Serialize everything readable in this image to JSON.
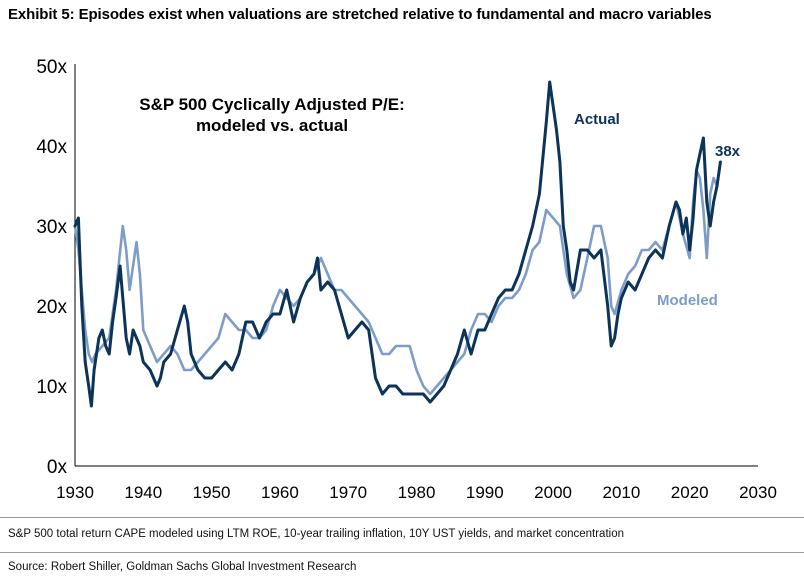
{
  "exhibit_title": "Exhibit 5: Episodes exist when valuations are stretched relative to fundamental and macro variables",
  "footnote": "S&P 500 total return CAPE modeled using LTM ROE, 10-year trailing inflation, 10Y UST yields, and market concentration",
  "source": "Source: Robert Shiller, Goldman Sachs Global Investment Research",
  "colors": {
    "actual": "#0c3358",
    "modeled": "#7d9dc8",
    "axis": "#000000"
  },
  "chart_data": {
    "type": "line",
    "title_lines": [
      "S&P 500 Cyclically Adjusted P/E:",
      "modeled vs. actual"
    ],
    "xlim": [
      1930,
      2030
    ],
    "ylim": [
      0,
      50
    ],
    "x_ticks": [
      1930,
      1940,
      1950,
      1960,
      1970,
      1980,
      1990,
      2000,
      2010,
      2020,
      2030
    ],
    "x_tick_labels": [
      "1930",
      "1940",
      "1950",
      "1960",
      "1970",
      "1980",
      "1990",
      "2000",
      "2010",
      "2020",
      "2030"
    ],
    "y_ticks": [
      0,
      10,
      20,
      30,
      40,
      50
    ],
    "y_tick_labels": [
      "0x",
      "10x",
      "20x",
      "30x",
      "40x",
      "50x"
    ],
    "grid": false,
    "annotations": [
      {
        "text": "Actual",
        "series": "Actual"
      },
      {
        "text": "Modeled",
        "series": "Modeled"
      },
      {
        "text": "38x",
        "series": "Actual"
      }
    ],
    "series": [
      {
        "name": "Actual",
        "color": "#0c3358",
        "points": [
          [
            1930,
            30
          ],
          [
            1930.5,
            31
          ],
          [
            1931,
            20
          ],
          [
            1931.5,
            13
          ],
          [
            1932,
            10
          ],
          [
            1932.4,
            7.5
          ],
          [
            1932.8,
            12
          ],
          [
            1933.5,
            16
          ],
          [
            1934,
            17
          ],
          [
            1934.5,
            15
          ],
          [
            1935,
            14
          ],
          [
            1935.5,
            18
          ],
          [
            1936,
            21
          ],
          [
            1936.6,
            25
          ],
          [
            1937,
            21
          ],
          [
            1937.5,
            16
          ],
          [
            1938,
            14
          ],
          [
            1938.5,
            17
          ],
          [
            1939,
            16
          ],
          [
            1939.5,
            15
          ],
          [
            1940,
            13
          ],
          [
            1941,
            12
          ],
          [
            1942,
            10
          ],
          [
            1942.5,
            11
          ],
          [
            1943,
            13
          ],
          [
            1944,
            14
          ],
          [
            1945,
            17
          ],
          [
            1946,
            20
          ],
          [
            1946.5,
            18
          ],
          [
            1947,
            14
          ],
          [
            1948,
            12
          ],
          [
            1949,
            11
          ],
          [
            1950,
            11
          ],
          [
            1951,
            12
          ],
          [
            1952,
            13
          ],
          [
            1953,
            12
          ],
          [
            1954,
            14
          ],
          [
            1955,
            18
          ],
          [
            1956,
            18
          ],
          [
            1957,
            16
          ],
          [
            1958,
            18
          ],
          [
            1959,
            19
          ],
          [
            1960,
            19
          ],
          [
            1961,
            22
          ],
          [
            1962,
            18
          ],
          [
            1963,
            21
          ],
          [
            1964,
            23
          ],
          [
            1965,
            24
          ],
          [
            1965.5,
            26
          ],
          [
            1966,
            22
          ],
          [
            1967,
            23
          ],
          [
            1968,
            22
          ],
          [
            1969,
            19
          ],
          [
            1970,
            16
          ],
          [
            1971,
            17
          ],
          [
            1972,
            18
          ],
          [
            1973,
            17
          ],
          [
            1974,
            11
          ],
          [
            1975,
            9
          ],
          [
            1976,
            10
          ],
          [
            1977,
            10
          ],
          [
            1978,
            9
          ],
          [
            1979,
            9
          ],
          [
            1980,
            9
          ],
          [
            1981,
            9
          ],
          [
            1982,
            8
          ],
          [
            1983,
            9
          ],
          [
            1984,
            10
          ],
          [
            1985,
            12
          ],
          [
            1986,
            14
          ],
          [
            1987,
            17
          ],
          [
            1988,
            14
          ],
          [
            1989,
            17
          ],
          [
            1990,
            17
          ],
          [
            1991,
            19
          ],
          [
            1992,
            21
          ],
          [
            1993,
            22
          ],
          [
            1994,
            22
          ],
          [
            1995,
            24
          ],
          [
            1996,
            27
          ],
          [
            1997,
            30
          ],
          [
            1998,
            34
          ],
          [
            1999,
            43
          ],
          [
            1999.5,
            48
          ],
          [
            2000,
            45
          ],
          [
            2000.5,
            42
          ],
          [
            2001,
            38
          ],
          [
            2001.5,
            30
          ],
          [
            2002,
            27
          ],
          [
            2002.5,
            23
          ],
          [
            2003,
            22
          ],
          [
            2004,
            27
          ],
          [
            2005,
            27
          ],
          [
            2006,
            26
          ],
          [
            2007,
            27
          ],
          [
            2008,
            20
          ],
          [
            2008.5,
            15
          ],
          [
            2009,
            16
          ],
          [
            2009.5,
            19
          ],
          [
            2010,
            21
          ],
          [
            2011,
            23
          ],
          [
            2012,
            22
          ],
          [
            2013,
            24
          ],
          [
            2014,
            26
          ],
          [
            2015,
            27
          ],
          [
            2016,
            26
          ],
          [
            2017,
            30
          ],
          [
            2018,
            33
          ],
          [
            2018.5,
            32
          ],
          [
            2019,
            29
          ],
          [
            2019.5,
            31
          ],
          [
            2020,
            27
          ],
          [
            2020.5,
            31
          ],
          [
            2021,
            37
          ],
          [
            2021.5,
            39
          ],
          [
            2022,
            41
          ],
          [
            2022.5,
            33
          ],
          [
            2023,
            30
          ],
          [
            2023.5,
            33
          ],
          [
            2024,
            35
          ],
          [
            2024.5,
            38
          ]
        ]
      },
      {
        "name": "Modeled",
        "color": "#7d9dc8",
        "points": [
          [
            1930,
            30
          ],
          [
            1930.5,
            27
          ],
          [
            1931,
            22
          ],
          [
            1931.5,
            17
          ],
          [
            1932,
            14
          ],
          [
            1932.5,
            13
          ],
          [
            1933,
            14
          ],
          [
            1934,
            15
          ],
          [
            1935,
            16
          ],
          [
            1936,
            22
          ],
          [
            1937,
            30
          ],
          [
            1937.5,
            27
          ],
          [
            1938,
            22
          ],
          [
            1939,
            28
          ],
          [
            1939.5,
            24
          ],
          [
            1940,
            17
          ],
          [
            1941,
            15
          ],
          [
            1942,
            13
          ],
          [
            1943,
            14
          ],
          [
            1944,
            15
          ],
          [
            1945,
            14
          ],
          [
            1946,
            12
          ],
          [
            1947,
            12
          ],
          [
            1948,
            13
          ],
          [
            1949,
            14
          ],
          [
            1950,
            15
          ],
          [
            1951,
            16
          ],
          [
            1952,
            19
          ],
          [
            1953,
            18
          ],
          [
            1954,
            17
          ],
          [
            1955,
            17
          ],
          [
            1956,
            16
          ],
          [
            1957,
            16
          ],
          [
            1958,
            17
          ],
          [
            1959,
            20
          ],
          [
            1960,
            22
          ],
          [
            1961,
            21
          ],
          [
            1962,
            20
          ],
          [
            1963,
            21
          ],
          [
            1964,
            23
          ],
          [
            1965,
            24
          ],
          [
            1966,
            26
          ],
          [
            1967,
            24
          ],
          [
            1968,
            22
          ],
          [
            1969,
            22
          ],
          [
            1970,
            21
          ],
          [
            1971,
            20
          ],
          [
            1972,
            19
          ],
          [
            1973,
            18
          ],
          [
            1974,
            16
          ],
          [
            1975,
            14
          ],
          [
            1976,
            14
          ],
          [
            1977,
            15
          ],
          [
            1978,
            15
          ],
          [
            1979,
            15
          ],
          [
            1980,
            12
          ],
          [
            1981,
            10
          ],
          [
            1982,
            9
          ],
          [
            1983,
            10
          ],
          [
            1984,
            11
          ],
          [
            1985,
            12
          ],
          [
            1986,
            13
          ],
          [
            1987,
            14
          ],
          [
            1988,
            17
          ],
          [
            1989,
            19
          ],
          [
            1990,
            19
          ],
          [
            1991,
            18
          ],
          [
            1992,
            20
          ],
          [
            1993,
            21
          ],
          [
            1994,
            21
          ],
          [
            1995,
            22
          ],
          [
            1996,
            24
          ],
          [
            1997,
            27
          ],
          [
            1998,
            28
          ],
          [
            1999,
            32
          ],
          [
            2000,
            31
          ],
          [
            2001,
            30
          ],
          [
            2002,
            24
          ],
          [
            2003,
            21
          ],
          [
            2004,
            22
          ],
          [
            2005,
            26
          ],
          [
            2006,
            30
          ],
          [
            2007,
            30
          ],
          [
            2008,
            26
          ],
          [
            2008.5,
            20
          ],
          [
            2009,
            19
          ],
          [
            2010,
            22
          ],
          [
            2011,
            24
          ],
          [
            2012,
            25
          ],
          [
            2013,
            27
          ],
          [
            2014,
            27
          ],
          [
            2015,
            28
          ],
          [
            2016,
            27
          ],
          [
            2017,
            30
          ],
          [
            2018,
            33
          ],
          [
            2019,
            29
          ],
          [
            2020,
            26
          ],
          [
            2020.5,
            33
          ],
          [
            2021,
            37
          ],
          [
            2021.5,
            36
          ],
          [
            2022,
            32
          ],
          [
            2022.5,
            26
          ],
          [
            2023,
            34
          ],
          [
            2023.5,
            36
          ],
          [
            2024,
            35
          ]
        ]
      }
    ]
  }
}
